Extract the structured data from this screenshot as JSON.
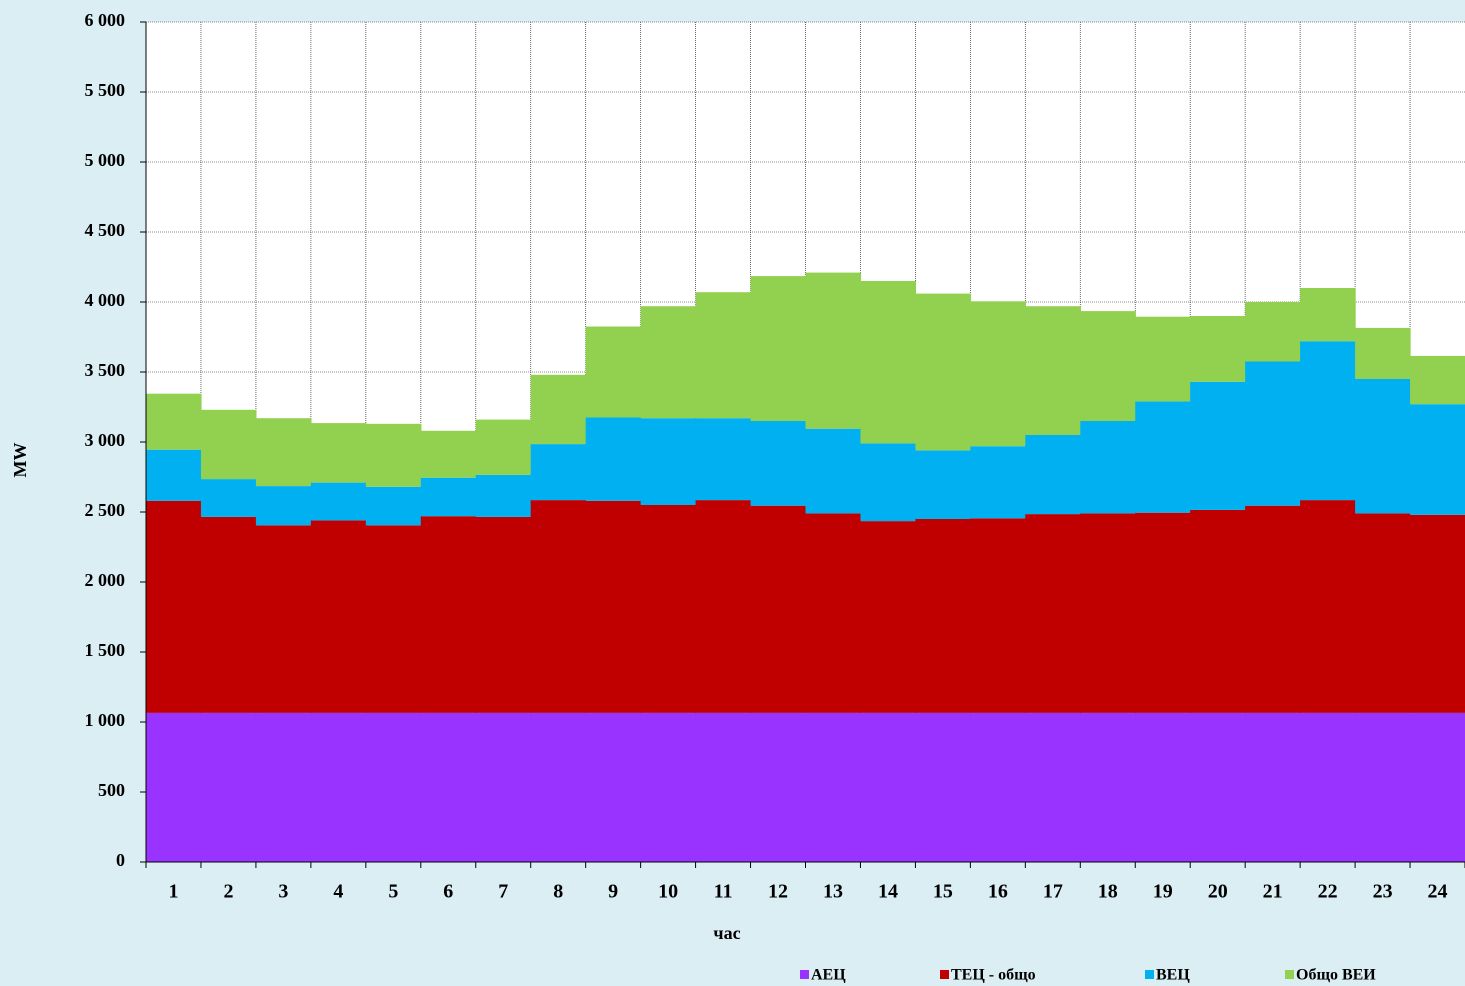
{
  "chart_data": {
    "type": "stacked_step_area",
    "y_label": "MW",
    "x_label": "час",
    "categories": [
      "1",
      "2",
      "3",
      "4",
      "5",
      "6",
      "7",
      "8",
      "9",
      "10",
      "11",
      "12",
      "13",
      "14",
      "15",
      "16",
      "17",
      "18",
      "19",
      "20",
      "21",
      "22",
      "23",
      "24"
    ],
    "series": [
      {
        "name": "АЕЦ",
        "color": "#9933ff",
        "values": [
          1065,
          1065,
          1065,
          1065,
          1065,
          1065,
          1065,
          1065,
          1065,
          1065,
          1065,
          1065,
          1065,
          1065,
          1065,
          1065,
          1065,
          1065,
          1065,
          1065,
          1065,
          1065,
          1065,
          1065
        ]
      },
      {
        "name": "ТЕЦ - общо",
        "color": "#c00000",
        "values": [
          1515,
          1400,
          1340,
          1375,
          1340,
          1405,
          1400,
          1520,
          1515,
          1485,
          1520,
          1480,
          1425,
          1370,
          1385,
          1390,
          1420,
          1425,
          1430,
          1450,
          1480,
          1520,
          1425,
          1415
        ]
      },
      {
        "name": "ВЕЦ",
        "color": "#00b0f0",
        "values": [
          365,
          270,
          280,
          270,
          275,
          275,
          300,
          400,
          595,
          620,
          585,
          605,
          605,
          555,
          490,
          515,
          565,
          660,
          795,
          915,
          1030,
          1135,
          960,
          790
        ]
      },
      {
        "name": "Общо ВЕИ",
        "color": "#92d050",
        "values": [
          400,
          495,
          485,
          425,
          450,
          335,
          395,
          495,
          650,
          800,
          900,
          1035,
          1115,
          1160,
          1120,
          1035,
          920,
          785,
          605,
          470,
          425,
          380,
          365,
          345
        ]
      }
    ],
    "ylim": [
      0,
      6000
    ],
    "yticks": [
      0,
      500,
      {
        "value": 1000,
        "label": "1 000"
      },
      {
        "value": 1500,
        "label": "1 500"
      },
      {
        "value": 2000,
        "label": "2 000"
      },
      {
        "value": 2500,
        "label": "2 500"
      },
      {
        "value": 3000,
        "label": "3 000"
      },
      {
        "value": 3500,
        "label": "3 500"
      },
      {
        "value": 4000,
        "label": "4 000"
      },
      {
        "value": 4500,
        "label": "4 500"
      },
      {
        "value": 5000,
        "label": "5 000"
      },
      {
        "value": 5500,
        "label": "5 500"
      },
      {
        "value": 6000,
        "label": "6 000"
      }
    ],
    "grid": true,
    "legend": "bottom"
  }
}
